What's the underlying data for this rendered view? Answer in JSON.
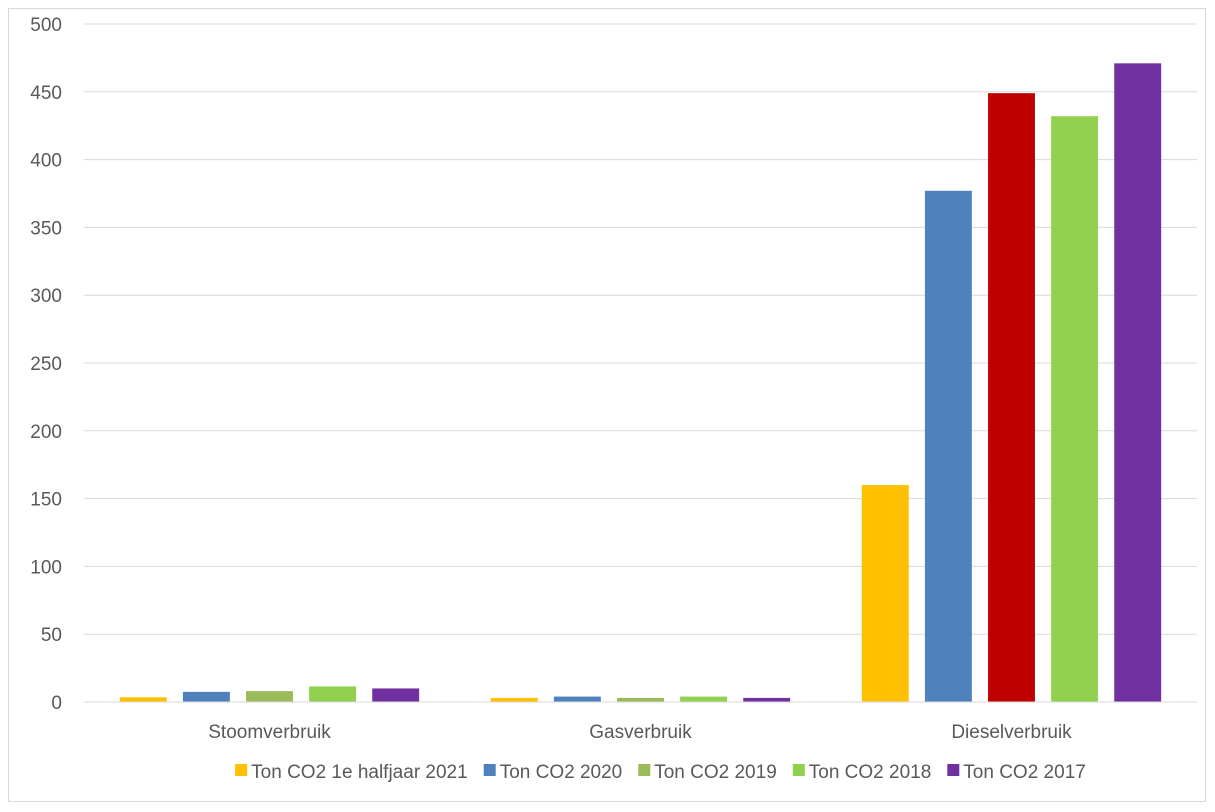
{
  "chart_data": {
    "type": "bar",
    "categories": [
      "Stoomverbruik",
      "Gasverbruik",
      "Dieselverbruik"
    ],
    "series": [
      {
        "name": "Ton CO2 1e halfjaar 2021",
        "color": "#FFC000",
        "values": [
          3.5,
          3,
          160
        ]
      },
      {
        "name": "Ton CO2 2020",
        "color": "#4F81BD",
        "values": [
          7.5,
          4,
          377
        ]
      },
      {
        "name": "Ton CO2 2019",
        "color": "#9BBB59",
        "values": [
          8,
          3,
          449
        ]
      },
      {
        "name": "Ton CO2 2018",
        "color": "#92D050",
        "values": [
          11.5,
          4,
          432
        ]
      },
      {
        "name": "Ton CO2 2017",
        "color": "#7030A0",
        "values": [
          10,
          3,
          471
        ]
      }
    ],
    "point_color_overrides": [
      {
        "series": 2,
        "category": 2,
        "color": "#C00000"
      }
    ],
    "ylim": [
      0,
      500
    ],
    "yticks": [
      0,
      50,
      100,
      150,
      200,
      250,
      300,
      350,
      400,
      450,
      500
    ],
    "grid": true,
    "legend_position": "bottom"
  }
}
